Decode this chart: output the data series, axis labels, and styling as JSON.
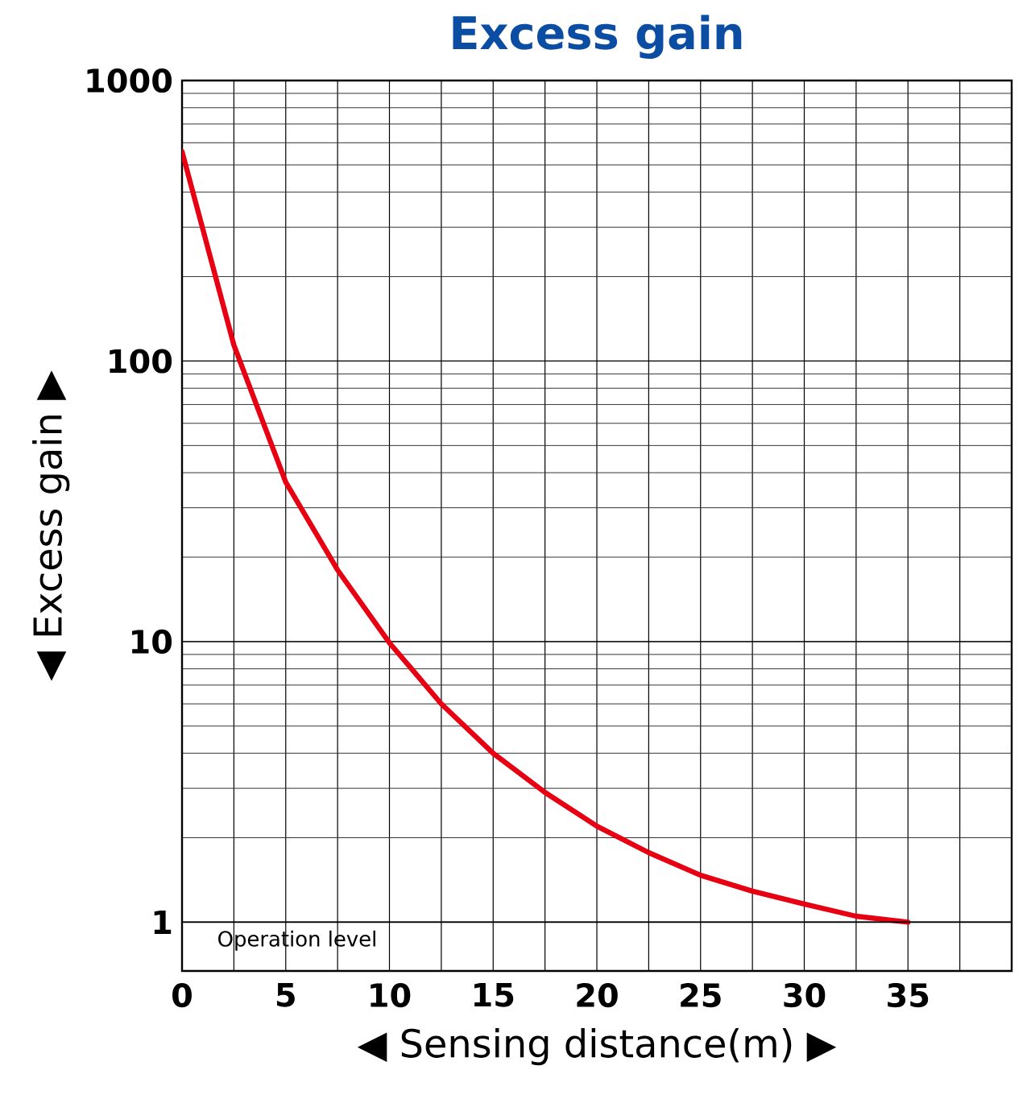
{
  "chart_data": {
    "type": "line",
    "title": "Excess gain",
    "xlabel": "◀ Sensing distance(m) ▶",
    "ylabel": "◀ Excess gain ▶",
    "x": [
      0,
      2.5,
      5,
      7.5,
      10,
      12.5,
      15,
      17.5,
      20,
      22.5,
      25,
      27.5,
      30,
      32.5,
      35
    ],
    "series": [
      {
        "color": "#e60012",
        "values": [
          558,
          114,
          37,
          18,
          9.9,
          6.0,
          4.0,
          2.9,
          2.2,
          1.77,
          1.47,
          1.29,
          1.16,
          1.05,
          1.0
        ]
      }
    ],
    "xlim": [
      0,
      40
    ],
    "ylim": [
      0.67,
      1000
    ],
    "log": "y",
    "xticks": [
      0,
      {
        "value": 2.5,
        "label": null
      },
      5,
      {
        "value": 7.5,
        "label": null
      },
      10,
      {
        "value": 12.5,
        "label": null
      },
      15,
      {
        "value": 17.5,
        "label": null
      },
      20,
      {
        "value": 22.5,
        "label": null
      },
      25,
      {
        "value": 27.5,
        "label": null
      },
      30,
      {
        "value": 32.5,
        "label": null
      },
      35,
      {
        "value": 37.5,
        "label": null
      },
      {
        "value": 40,
        "label": null
      }
    ],
    "yticks": [
      1,
      10,
      100,
      1000
    ],
    "grid": true,
    "marker": "none",
    "line_style": "solid",
    "ref_lines": [
      {
        "axis": "y",
        "value": 1,
        "label": "Operation level"
      }
    ]
  }
}
